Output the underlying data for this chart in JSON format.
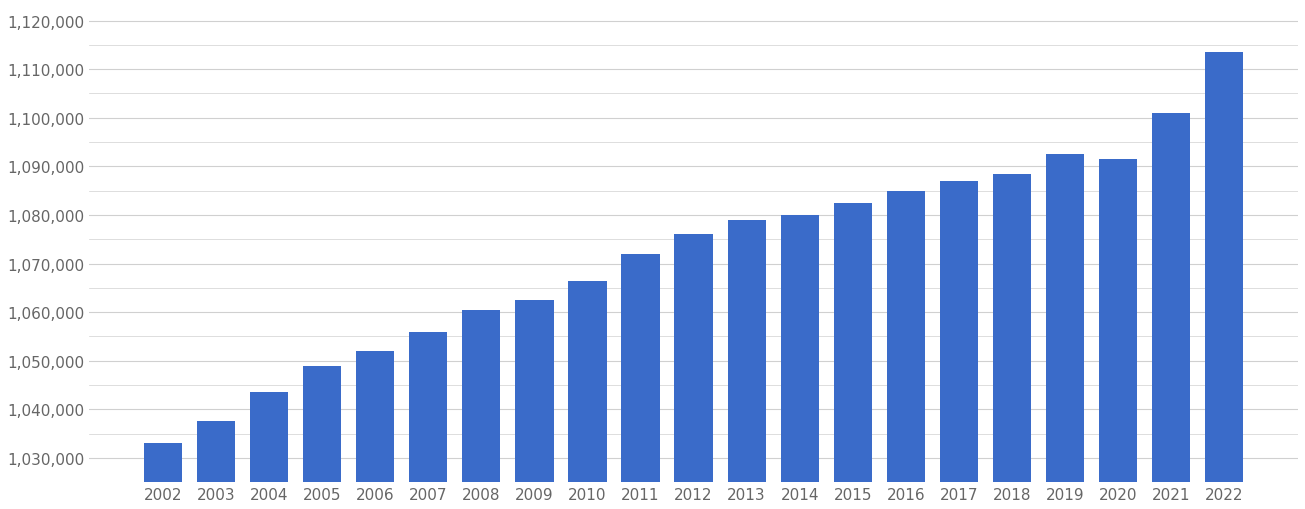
{
  "years": [
    2002,
    2003,
    2004,
    2005,
    2006,
    2007,
    2008,
    2009,
    2010,
    2011,
    2012,
    2013,
    2014,
    2015,
    2016,
    2017,
    2018,
    2019,
    2020,
    2021,
    2022
  ],
  "values": [
    1033000,
    1037500,
    1043500,
    1049000,
    1052000,
    1056000,
    1060500,
    1062500,
    1066500,
    1072000,
    1076000,
    1079000,
    1080000,
    1082500,
    1085000,
    1087000,
    1088500,
    1092500,
    1091500,
    1101000,
    1113500
  ],
  "bar_color": "#3a6bc9",
  "ylim_min": 1025000,
  "ylim_max": 1123000,
  "ytick_start": 1030000,
  "ytick_end": 1120000,
  "ytick_step": 10000,
  "ytick_minor_step": 5000,
  "background_color": "#ffffff",
  "grid_color": "#d0d0d0",
  "tick_label_color": "#666666",
  "tick_fontsize": 11,
  "bar_width": 0.72
}
